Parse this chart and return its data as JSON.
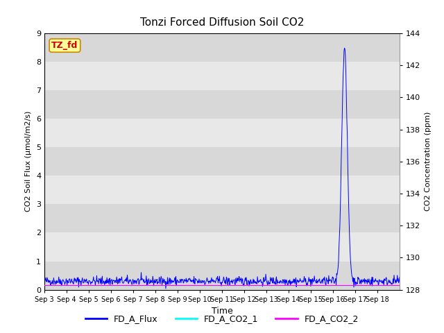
{
  "title": "Tonzi Forced Diffusion Soil CO2",
  "xlabel": "Time",
  "ylabel_left": "CO2 Soil Flux (μmol/m2/s)",
  "ylabel_right": "CO2 Concentration (ppm)",
  "ylim_left": [
    0.0,
    9.0
  ],
  "ylim_right": [
    128,
    144
  ],
  "yticks_left": [
    0.0,
    1.0,
    2.0,
    3.0,
    4.0,
    5.0,
    6.0,
    7.0,
    8.0,
    9.0
  ],
  "yticks_right": [
    128,
    130,
    132,
    134,
    136,
    138,
    140,
    142,
    144
  ],
  "x_tick_labels": [
    "Sep 3",
    "Sep 4",
    "Sep 5",
    "Sep 6",
    "Sep 7",
    "Sep 8",
    "Sep 9",
    "Sep 10",
    "Sep 11",
    "Sep 12",
    "Sep 13",
    "Sep 14",
    "Sep 15",
    "Sep 16",
    "Sep 17",
    "Sep 18"
  ],
  "figure_bg": "#ffffff",
  "plot_bg_dark": "#d8d8d8",
  "plot_bg_light": "#e8e8e8",
  "grid_color": "#ffffff",
  "flux_color": "#0000ff",
  "co2_1_color": "#00ffff",
  "co2_2_color": "#ff00ff",
  "legend_entries": [
    "FD_A_Flux",
    "FD_A_CO2_1",
    "FD_A_CO2_2"
  ],
  "tag_text": "TZ_fd",
  "tag_fg": "#cc0000",
  "tag_bg": "#ffff99",
  "tag_edge": "#cc8800",
  "spike_value": 8.2,
  "num_days": 16,
  "baseline_mean": 0.3,
  "baseline_noise": 0.08,
  "seed": 42,
  "title_fontsize": 11,
  "label_fontsize": 8,
  "tick_fontsize": 8
}
